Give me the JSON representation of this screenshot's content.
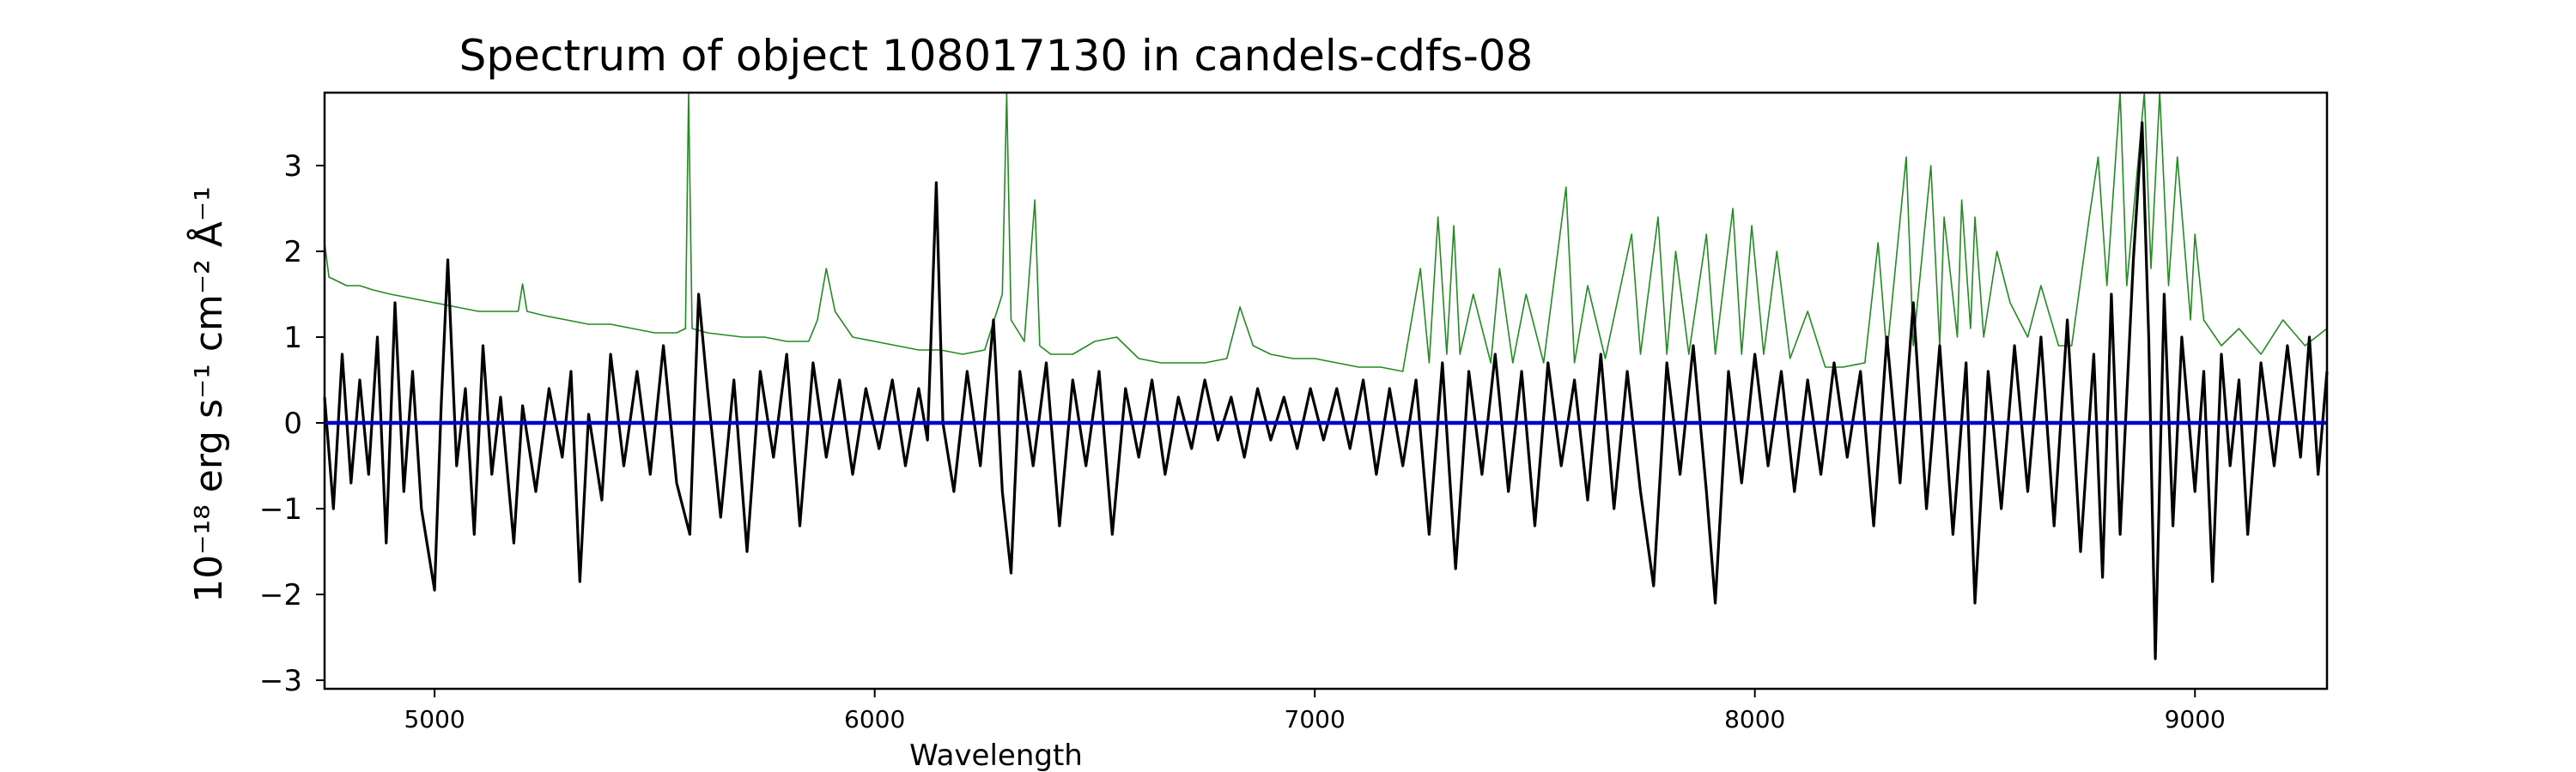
{
  "chart_data": {
    "type": "line",
    "title": "Spectrum of object 108017130 in candels-cdfs-08",
    "xlabel": "Wavelength",
    "ylabel": "10⁻¹⁸ erg s⁻¹ cm⁻² Å⁻¹",
    "xlim": [
      4750,
      9300
    ],
    "ylim": [
      -3.1,
      3.85
    ],
    "x_ticks": [
      5000,
      6000,
      7000,
      8000,
      9000
    ],
    "y_ticks": [
      -3,
      -2,
      -1,
      0,
      1,
      2,
      3
    ],
    "x_tick_labels": [
      "5000",
      "6000",
      "7000",
      "8000",
      "9000"
    ],
    "y_tick_labels": [
      "−3",
      "−2",
      "−1",
      "0",
      "1",
      "2",
      "3"
    ],
    "grid": false,
    "series": [
      {
        "color": "#228b22",
        "role": "error",
        "points": [
          [
            4750,
            2.1
          ],
          [
            4760,
            1.7
          ],
          [
            4780,
            1.65
          ],
          [
            4800,
            1.6
          ],
          [
            4830,
            1.6
          ],
          [
            4860,
            1.55
          ],
          [
            4900,
            1.5
          ],
          [
            4950,
            1.45
          ],
          [
            5000,
            1.4
          ],
          [
            5050,
            1.35
          ],
          [
            5100,
            1.3
          ],
          [
            5150,
            1.3
          ],
          [
            5190,
            1.3
          ],
          [
            5200,
            1.62
          ],
          [
            5210,
            1.3
          ],
          [
            5250,
            1.25
          ],
          [
            5300,
            1.2
          ],
          [
            5350,
            1.15
          ],
          [
            5400,
            1.15
          ],
          [
            5450,
            1.1
          ],
          [
            5500,
            1.05
          ],
          [
            5550,
            1.05
          ],
          [
            5570,
            1.1
          ],
          [
            5577,
            3.85
          ],
          [
            5585,
            1.1
          ],
          [
            5620,
            1.05
          ],
          [
            5700,
            1.0
          ],
          [
            5750,
            1.0
          ],
          [
            5800,
            0.95
          ],
          [
            5850,
            0.95
          ],
          [
            5870,
            1.2
          ],
          [
            5890,
            1.8
          ],
          [
            5910,
            1.3
          ],
          [
            5950,
            1.0
          ],
          [
            6000,
            0.95
          ],
          [
            6050,
            0.9
          ],
          [
            6100,
            0.85
          ],
          [
            6150,
            0.85
          ],
          [
            6200,
            0.8
          ],
          [
            6250,
            0.85
          ],
          [
            6290,
            1.5
          ],
          [
            6300,
            3.85
          ],
          [
            6310,
            1.2
          ],
          [
            6340,
            0.95
          ],
          [
            6364,
            2.6
          ],
          [
            6375,
            0.9
          ],
          [
            6400,
            0.8
          ],
          [
            6450,
            0.8
          ],
          [
            6500,
            0.95
          ],
          [
            6550,
            1.0
          ],
          [
            6600,
            0.75
          ],
          [
            6650,
            0.7
          ],
          [
            6700,
            0.7
          ],
          [
            6750,
            0.7
          ],
          [
            6800,
            0.75
          ],
          [
            6830,
            1.35
          ],
          [
            6860,
            0.9
          ],
          [
            6900,
            0.8
          ],
          [
            6950,
            0.75
          ],
          [
            7000,
            0.75
          ],
          [
            7050,
            0.7
          ],
          [
            7100,
            0.65
          ],
          [
            7150,
            0.65
          ],
          [
            7200,
            0.6
          ],
          [
            7240,
            1.8
          ],
          [
            7260,
            0.7
          ],
          [
            7280,
            2.4
          ],
          [
            7300,
            0.8
          ],
          [
            7316,
            2.3
          ],
          [
            7330,
            0.8
          ],
          [
            7360,
            1.5
          ],
          [
            7400,
            0.7
          ],
          [
            7420,
            1.8
          ],
          [
            7450,
            0.7
          ],
          [
            7480,
            1.5
          ],
          [
            7520,
            0.7
          ],
          [
            7571,
            2.75
          ],
          [
            7590,
            0.7
          ],
          [
            7620,
            1.6
          ],
          [
            7660,
            0.75
          ],
          [
            7720,
            2.2
          ],
          [
            7740,
            0.8
          ],
          [
            7780,
            2.4
          ],
          [
            7800,
            0.8
          ],
          [
            7820,
            2.0
          ],
          [
            7850,
            0.8
          ],
          [
            7890,
            2.2
          ],
          [
            7910,
            0.8
          ],
          [
            7950,
            2.5
          ],
          [
            7970,
            0.8
          ],
          [
            7993,
            2.3
          ],
          [
            8020,
            0.8
          ],
          [
            8050,
            2.0
          ],
          [
            8080,
            0.75
          ],
          [
            8120,
            1.3
          ],
          [
            8160,
            0.65
          ],
          [
            8200,
            0.65
          ],
          [
            8250,
            0.7
          ],
          [
            8280,
            2.1
          ],
          [
            8300,
            0.8
          ],
          [
            8344,
            3.1
          ],
          [
            8360,
            0.9
          ],
          [
            8400,
            3.0
          ],
          [
            8420,
            0.9
          ],
          [
            8430,
            2.4
          ],
          [
            8460,
            1.0
          ],
          [
            8470,
            2.6
          ],
          [
            8490,
            1.1
          ],
          [
            8500,
            2.4
          ],
          [
            8520,
            1.0
          ],
          [
            8550,
            2.0
          ],
          [
            8580,
            1.4
          ],
          [
            8620,
            1.0
          ],
          [
            8650,
            1.6
          ],
          [
            8690,
            0.9
          ],
          [
            8720,
            0.9
          ],
          [
            8760,
            2.4
          ],
          [
            8780,
            3.1
          ],
          [
            8800,
            1.6
          ],
          [
            8830,
            3.85
          ],
          [
            8845,
            1.6
          ],
          [
            8870,
            3.0
          ],
          [
            8885,
            3.85
          ],
          [
            8900,
            1.8
          ],
          [
            8920,
            3.85
          ],
          [
            8940,
            1.6
          ],
          [
            8960,
            3.1
          ],
          [
            8990,
            1.2
          ],
          [
            9000,
            2.2
          ],
          [
            9020,
            1.2
          ],
          [
            9060,
            0.9
          ],
          [
            9100,
            1.1
          ],
          [
            9150,
            0.8
          ],
          [
            9200,
            1.2
          ],
          [
            9250,
            0.9
          ],
          [
            9300,
            1.1
          ]
        ]
      },
      {
        "color": "#000000",
        "role": "flux",
        "points": [
          [
            4750,
            0.3
          ],
          [
            4770,
            -1.0
          ],
          [
            4790,
            0.8
          ],
          [
            4810,
            -0.7
          ],
          [
            4830,
            0.5
          ],
          [
            4850,
            -0.6
          ],
          [
            4870,
            1.0
          ],
          [
            4890,
            -1.4
          ],
          [
            4910,
            1.4
          ],
          [
            4930,
            -0.8
          ],
          [
            4950,
            0.6
          ],
          [
            4970,
            -1.0
          ],
          [
            5000,
            -1.95
          ],
          [
            5015,
            0.2
          ],
          [
            5030,
            1.9
          ],
          [
            5050,
            -0.5
          ],
          [
            5070,
            0.4
          ],
          [
            5090,
            -1.3
          ],
          [
            5110,
            0.9
          ],
          [
            5130,
            -0.6
          ],
          [
            5150,
            0.3
          ],
          [
            5180,
            -1.4
          ],
          [
            5200,
            0.2
          ],
          [
            5230,
            -0.8
          ],
          [
            5260,
            0.4
          ],
          [
            5290,
            -0.4
          ],
          [
            5310,
            0.6
          ],
          [
            5330,
            -1.85
          ],
          [
            5350,
            0.1
          ],
          [
            5380,
            -0.9
          ],
          [
            5400,
            0.8
          ],
          [
            5430,
            -0.5
          ],
          [
            5460,
            0.6
          ],
          [
            5490,
            -0.6
          ],
          [
            5520,
            0.9
          ],
          [
            5550,
            -0.7
          ],
          [
            5580,
            -1.3
          ],
          [
            5600,
            1.5
          ],
          [
            5620,
            0.4
          ],
          [
            5650,
            -1.1
          ],
          [
            5680,
            0.5
          ],
          [
            5710,
            -1.5
          ],
          [
            5740,
            0.6
          ],
          [
            5770,
            -0.4
          ],
          [
            5800,
            0.8
          ],
          [
            5830,
            -1.2
          ],
          [
            5860,
            0.7
          ],
          [
            5890,
            -0.4
          ],
          [
            5920,
            0.5
          ],
          [
            5950,
            -0.6
          ],
          [
            5980,
            0.4
          ],
          [
            6010,
            -0.3
          ],
          [
            6040,
            0.5
          ],
          [
            6070,
            -0.5
          ],
          [
            6100,
            0.4
          ],
          [
            6120,
            -0.2
          ],
          [
            6140,
            2.8
          ],
          [
            6155,
            0.0
          ],
          [
            6180,
            -0.8
          ],
          [
            6210,
            0.6
          ],
          [
            6240,
            -0.5
          ],
          [
            6270,
            1.2
          ],
          [
            6290,
            -0.8
          ],
          [
            6310,
            -1.75
          ],
          [
            6330,
            0.6
          ],
          [
            6360,
            -0.5
          ],
          [
            6390,
            0.7
          ],
          [
            6420,
            -1.2
          ],
          [
            6450,
            0.5
          ],
          [
            6480,
            -0.5
          ],
          [
            6510,
            0.6
          ],
          [
            6540,
            -1.3
          ],
          [
            6570,
            0.4
          ],
          [
            6600,
            -0.4
          ],
          [
            6630,
            0.5
          ],
          [
            6660,
            -0.6
          ],
          [
            6690,
            0.3
          ],
          [
            6720,
            -0.3
          ],
          [
            6750,
            0.5
          ],
          [
            6780,
            -0.2
          ],
          [
            6810,
            0.3
          ],
          [
            6840,
            -0.4
          ],
          [
            6870,
            0.4
          ],
          [
            6900,
            -0.2
          ],
          [
            6930,
            0.3
          ],
          [
            6960,
            -0.3
          ],
          [
            6990,
            0.4
          ],
          [
            7020,
            -0.2
          ],
          [
            7050,
            0.4
          ],
          [
            7080,
            -0.3
          ],
          [
            7110,
            0.5
          ],
          [
            7140,
            -0.6
          ],
          [
            7170,
            0.4
          ],
          [
            7200,
            -0.5
          ],
          [
            7230,
            0.5
          ],
          [
            7260,
            -1.3
          ],
          [
            7290,
            0.7
          ],
          [
            7320,
            -1.7
          ],
          [
            7350,
            0.6
          ],
          [
            7380,
            -0.6
          ],
          [
            7410,
            0.8
          ],
          [
            7440,
            -0.8
          ],
          [
            7470,
            0.6
          ],
          [
            7500,
            -1.2
          ],
          [
            7530,
            0.7
          ],
          [
            7560,
            -0.5
          ],
          [
            7590,
            0.5
          ],
          [
            7620,
            -0.9
          ],
          [
            7650,
            0.8
          ],
          [
            7680,
            -1.0
          ],
          [
            7710,
            0.6
          ],
          [
            7740,
            -0.8
          ],
          [
            7770,
            -1.9
          ],
          [
            7800,
            0.7
          ],
          [
            7830,
            -0.6
          ],
          [
            7860,
            0.9
          ],
          [
            7890,
            -0.8
          ],
          [
            7910,
            -2.1
          ],
          [
            7940,
            0.6
          ],
          [
            7970,
            -0.7
          ],
          [
            8000,
            0.8
          ],
          [
            8030,
            -0.5
          ],
          [
            8060,
            0.6
          ],
          [
            8090,
            -0.8
          ],
          [
            8120,
            0.5
          ],
          [
            8150,
            -0.6
          ],
          [
            8180,
            0.7
          ],
          [
            8210,
            -0.4
          ],
          [
            8240,
            0.6
          ],
          [
            8270,
            -1.2
          ],
          [
            8300,
            1.0
          ],
          [
            8330,
            -0.7
          ],
          [
            8360,
            1.4
          ],
          [
            8390,
            -1.0
          ],
          [
            8420,
            0.9
          ],
          [
            8450,
            -1.3
          ],
          [
            8480,
            0.7
          ],
          [
            8500,
            -2.1
          ],
          [
            8530,
            0.6
          ],
          [
            8560,
            -1.0
          ],
          [
            8590,
            0.9
          ],
          [
            8620,
            -0.8
          ],
          [
            8650,
            1.0
          ],
          [
            8680,
            -1.2
          ],
          [
            8710,
            1.2
          ],
          [
            8740,
            -1.5
          ],
          [
            8770,
            0.8
          ],
          [
            8790,
            -1.8
          ],
          [
            8810,
            1.5
          ],
          [
            8830,
            -1.3
          ],
          [
            8860,
            1.9
          ],
          [
            8880,
            3.5
          ],
          [
            8895,
            1.0
          ],
          [
            8910,
            -2.75
          ],
          [
            8930,
            1.5
          ],
          [
            8950,
            -1.2
          ],
          [
            8970,
            1.0
          ],
          [
            9000,
            -0.8
          ],
          [
            9020,
            0.6
          ],
          [
            9040,
            -1.85
          ],
          [
            9060,
            0.8
          ],
          [
            9080,
            -0.5
          ],
          [
            9100,
            0.5
          ],
          [
            9120,
            -1.3
          ],
          [
            9150,
            0.7
          ],
          [
            9180,
            -0.5
          ],
          [
            9210,
            0.9
          ],
          [
            9240,
            -0.4
          ],
          [
            9260,
            1.0
          ],
          [
            9280,
            -0.6
          ],
          [
            9300,
            0.6
          ]
        ]
      },
      {
        "color": "#0000cc",
        "role": "baseline",
        "points": [
          [
            4750,
            0
          ],
          [
            9300,
            0
          ]
        ]
      }
    ]
  }
}
